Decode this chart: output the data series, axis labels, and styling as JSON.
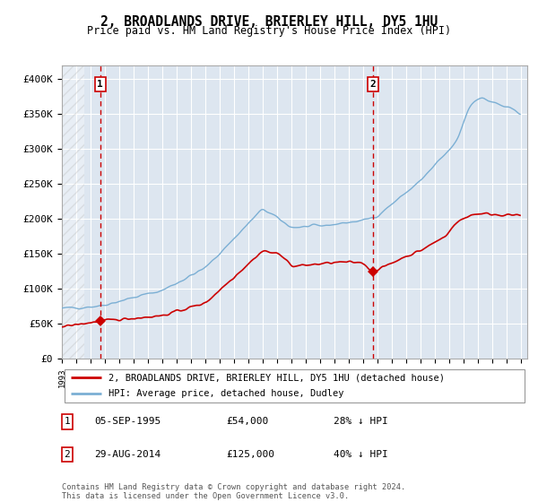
{
  "title": "2, BROADLANDS DRIVE, BRIERLEY HILL, DY5 1HU",
  "subtitle": "Price paid vs. HM Land Registry's House Price Index (HPI)",
  "sale1_price": 54000,
  "sale2_price": 125000,
  "legend_line1": "2, BROADLANDS DRIVE, BRIERLEY HILL, DY5 1HU (detached house)",
  "legend_line2": "HPI: Average price, detached house, Dudley",
  "table_row1": [
    "1",
    "05-SEP-1995",
    "£54,000",
    "28% ↓ HPI"
  ],
  "table_row2": [
    "2",
    "29-AUG-2014",
    "£125,000",
    "40% ↓ HPI"
  ],
  "footer": "Contains HM Land Registry data © Crown copyright and database right 2024.\nThis data is licensed under the Open Government Licence v3.0.",
  "hpi_color": "#7bafd4",
  "price_color": "#cc0000",
  "bg_color": "#dde6f0",
  "grid_color": "#ffffff",
  "dashed_line_color": "#cc0000",
  "yticks": [
    0,
    50000,
    100000,
    150000,
    200000,
    250000,
    300000,
    350000,
    400000
  ],
  "ytick_labels": [
    "£0",
    "£50K",
    "£100K",
    "£150K",
    "£200K",
    "£250K",
    "£300K",
    "£350K",
    "£400K"
  ]
}
